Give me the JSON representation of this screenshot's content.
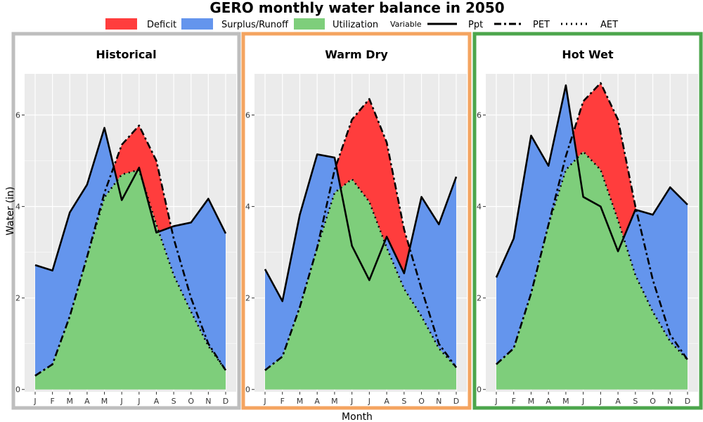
{
  "chart_data": {
    "type": "area",
    "title": "GERO monthly water balance in 2050",
    "xlabel": "Month",
    "ylabel": "Water (in)",
    "ylim": [
      -0.05,
      6.9
    ],
    "yticks": [
      0,
      2,
      4,
      6
    ],
    "months": [
      "J",
      "F",
      "M",
      "A",
      "M",
      "J",
      "J",
      "A",
      "S",
      "O",
      "N",
      "D"
    ],
    "legend": {
      "fill_items": [
        {
          "label": "Deficit",
          "color": "#FF3D3D"
        },
        {
          "label": "Surplus/Runoff",
          "color": "#6495ED"
        },
        {
          "label": "Utilization",
          "color": "#7ECE7B"
        }
      ],
      "line_title": "Variable",
      "line_items": [
        {
          "label": "Ppt",
          "style": "solid"
        },
        {
          "label": "PET",
          "style": "dashdot"
        },
        {
          "label": "AET",
          "style": "dotted"
        }
      ]
    },
    "panels": [
      {
        "title": "Historical",
        "border_color": "#BEBEBE",
        "series": [
          {
            "name": "Ppt",
            "values": [
              2.72,
              2.6,
              3.87,
              4.48,
              5.72,
              4.14,
              4.85,
              3.43,
              3.57,
              3.65,
              4.17,
              3.41
            ]
          },
          {
            "name": "PET",
            "values": [
              0.3,
              0.55,
              1.6,
              2.9,
              4.3,
              5.35,
              5.77,
              5.0,
              3.3,
              2.0,
              1.0,
              0.42
            ]
          },
          {
            "name": "AET",
            "values": [
              0.3,
              0.55,
              1.6,
              2.9,
              4.2,
              4.7,
              4.8,
              3.6,
              2.5,
              1.7,
              0.95,
              0.42
            ]
          }
        ]
      },
      {
        "title": "Warm Dry",
        "border_color": "#F4A460",
        "series": [
          {
            "name": "Ppt",
            "values": [
              2.63,
              1.93,
              3.82,
              5.14,
              5.07,
              3.14,
              2.39,
              3.34,
              2.54,
              4.21,
              3.61,
              4.65
            ]
          },
          {
            "name": "PET",
            "values": [
              0.42,
              0.72,
              1.8,
              3.1,
              4.8,
              5.9,
              6.35,
              5.4,
              3.5,
              2.2,
              1.0,
              0.48
            ]
          },
          {
            "name": "AET",
            "values": [
              0.42,
              0.72,
              1.8,
              3.1,
              4.3,
              4.6,
              4.1,
              3.1,
              2.2,
              1.6,
              0.9,
              0.48
            ]
          }
        ]
      },
      {
        "title": "Hot Wet",
        "border_color": "#4CA64C",
        "series": [
          {
            "name": "Ppt",
            "values": [
              2.45,
              3.3,
              5.55,
              4.89,
              6.65,
              4.21,
              4.0,
              3.02,
              3.93,
              3.82,
              4.42,
              4.04
            ]
          },
          {
            "name": "PET",
            "values": [
              0.55,
              0.9,
              2.1,
              3.6,
              5.1,
              6.3,
              6.7,
              5.9,
              4.0,
              2.4,
              1.2,
              0.65
            ]
          },
          {
            "name": "AET",
            "values": [
              0.55,
              0.9,
              2.1,
              3.6,
              4.8,
              5.2,
              4.8,
              3.7,
              2.5,
              1.7,
              1.05,
              0.65
            ]
          }
        ]
      }
    ]
  }
}
